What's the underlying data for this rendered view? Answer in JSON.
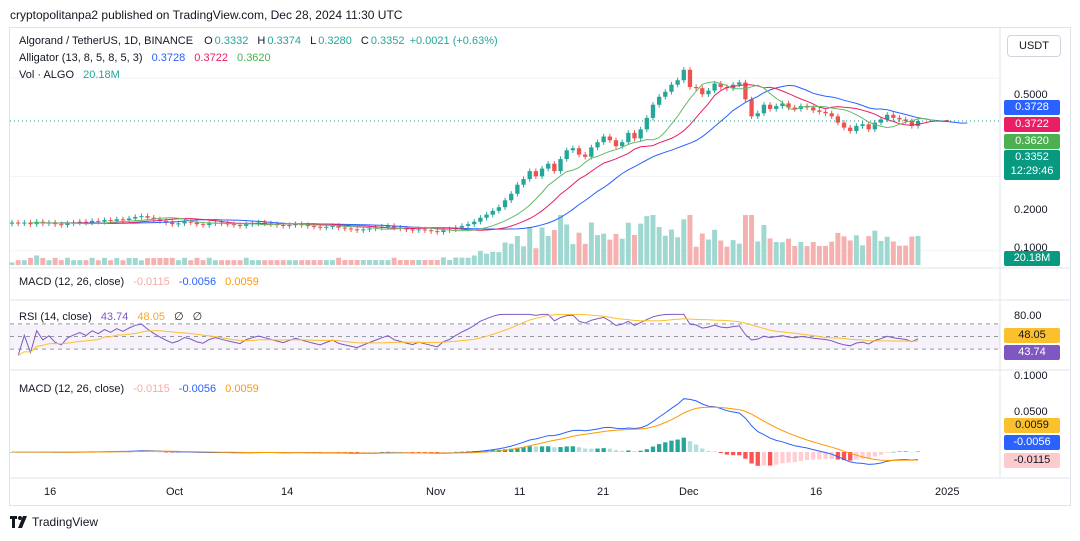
{
  "header": {
    "text": "cryptopolitanpa2 published on TradingView.com, Dec 28, 2024 11:30 UTC"
  },
  "legend": {
    "symbol": "Algorand / TetherUS, 1D, BINANCE",
    "o_label": "O",
    "o": "0.3332",
    "h_label": "H",
    "h": "0.3374",
    "l_label": "L",
    "l": "0.3280",
    "c_label": "C",
    "c": "0.3352",
    "chg": "+0.0021 (+0.63%)",
    "alligator_label": "Alligator (13, 8, 5, 8, 5, 3)",
    "alligator_jaw": "0.3728",
    "alligator_teeth": "0.3722",
    "alligator_lips": "0.3620",
    "vol_label": "Vol · ALGO",
    "vol_value": "20.18M",
    "macd_label_1": "MACD (12, 26, close)",
    "rsi_label": "RSI (14, close)",
    "rsi_value": "43.74",
    "rsi_ma": "48.05",
    "rsi_x1": "∅",
    "rsi_x2": "∅",
    "macd_label_2": "MACD (12, 26, close)",
    "macd_hist": "-0.0115",
    "macd_line": "-0.0056",
    "macd_signal": "0.0059"
  },
  "currency_button": "USDT",
  "price_axis": {
    "ticks": [
      "0.5000",
      "0.2000",
      "0.1000"
    ]
  },
  "price_labels": {
    "jaw": "0.3728",
    "teeth": "0.3722",
    "lips": "0.3620",
    "last": "0.3352",
    "countdown": "12:29:46",
    "volume": "20.18M"
  },
  "rsi_axis": {
    "top": "80.00",
    "ma": "48.05",
    "rsi": "43.74"
  },
  "macd_axis": {
    "top": "0.1000",
    "mid": "0.0500",
    "signal": "0.0059",
    "macd": "-0.0056",
    "hist": "-0.0115"
  },
  "time_axis": [
    "16",
    "Oct",
    "14",
    "Nov",
    "11",
    "21",
    "Dec",
    "16",
    "2025"
  ],
  "footer": {
    "brand": "TradingView"
  },
  "colors": {
    "up": "#26a69a",
    "down": "#ef5350",
    "jaw": "#2962ff",
    "teeth": "#e91e63",
    "lips": "#66bb6a",
    "rsi": "#7e57c2",
    "rsi_ma": "#fbc02d",
    "macd": "#2962ff",
    "signal": "#ff9800"
  },
  "chart_data": {
    "type": "candlestick",
    "title": "Algorand / TetherUS, 1D, BINANCE",
    "y_scale": "log",
    "ylim": [
      0.09,
      0.62
    ],
    "price_ticks": [
      0.5,
      0.2,
      0.1
    ],
    "x_ticks": [
      "16",
      "Oct",
      "14",
      "Nov",
      "11",
      "21",
      "Dec",
      "16",
      "2025"
    ],
    "last_close": 0.3352,
    "candles_close": [
      0.13,
      0.129,
      0.13,
      0.128,
      0.131,
      0.129,
      0.13,
      0.128,
      0.127,
      0.129,
      0.13,
      0.131,
      0.13,
      0.132,
      0.131,
      0.133,
      0.132,
      0.134,
      0.133,
      0.135,
      0.137,
      0.138,
      0.136,
      0.134,
      0.132,
      0.13,
      0.128,
      0.129,
      0.131,
      0.13,
      0.128,
      0.127,
      0.129,
      0.13,
      0.129,
      0.128,
      0.127,
      0.126,
      0.128,
      0.129,
      0.13,
      0.129,
      0.128,
      0.127,
      0.126,
      0.127,
      0.128,
      0.127,
      0.126,
      0.125,
      0.124,
      0.125,
      0.126,
      0.124,
      0.123,
      0.122,
      0.121,
      0.122,
      0.123,
      0.124,
      0.125,
      0.126,
      0.124,
      0.123,
      0.122,
      0.121,
      0.122,
      0.121,
      0.12,
      0.119,
      0.121,
      0.122,
      0.124,
      0.126,
      0.128,
      0.131,
      0.136,
      0.14,
      0.145,
      0.15,
      0.16,
      0.17,
      0.185,
      0.195,
      0.21,
      0.2,
      0.215,
      0.225,
      0.21,
      0.235,
      0.255,
      0.26,
      0.245,
      0.24,
      0.262,
      0.275,
      0.29,
      0.28,
      0.265,
      0.275,
      0.3,
      0.285,
      0.31,
      0.345,
      0.39,
      0.42,
      0.44,
      0.47,
      0.49,
      0.54,
      0.46,
      0.455,
      0.43,
      0.445,
      0.475,
      0.46,
      0.455,
      0.47,
      0.48,
      0.41,
      0.35,
      0.36,
      0.39,
      0.375,
      0.385,
      0.395,
      0.38,
      0.375,
      0.385,
      0.38,
      0.37,
      0.365,
      0.36,
      0.35,
      0.33,
      0.315,
      0.305,
      0.32,
      0.325,
      0.31,
      0.33,
      0.34,
      0.355,
      0.345,
      0.34,
      0.335,
      0.32,
      0.335
    ],
    "alligator": {
      "jaw": 0.3728,
      "teeth": 0.3722,
      "lips": 0.362
    },
    "volume_last": "20.18M",
    "rsi": {
      "value": 43.74,
      "ma": 48.05,
      "ylim": [
        0,
        100
      ],
      "bands": [
        70,
        30
      ],
      "axis_tick": 80
    },
    "macd": {
      "macd": -0.0056,
      "signal": 0.0059,
      "histogram": -0.0115,
      "axis_ticks": [
        0.1,
        0.05
      ]
    }
  }
}
